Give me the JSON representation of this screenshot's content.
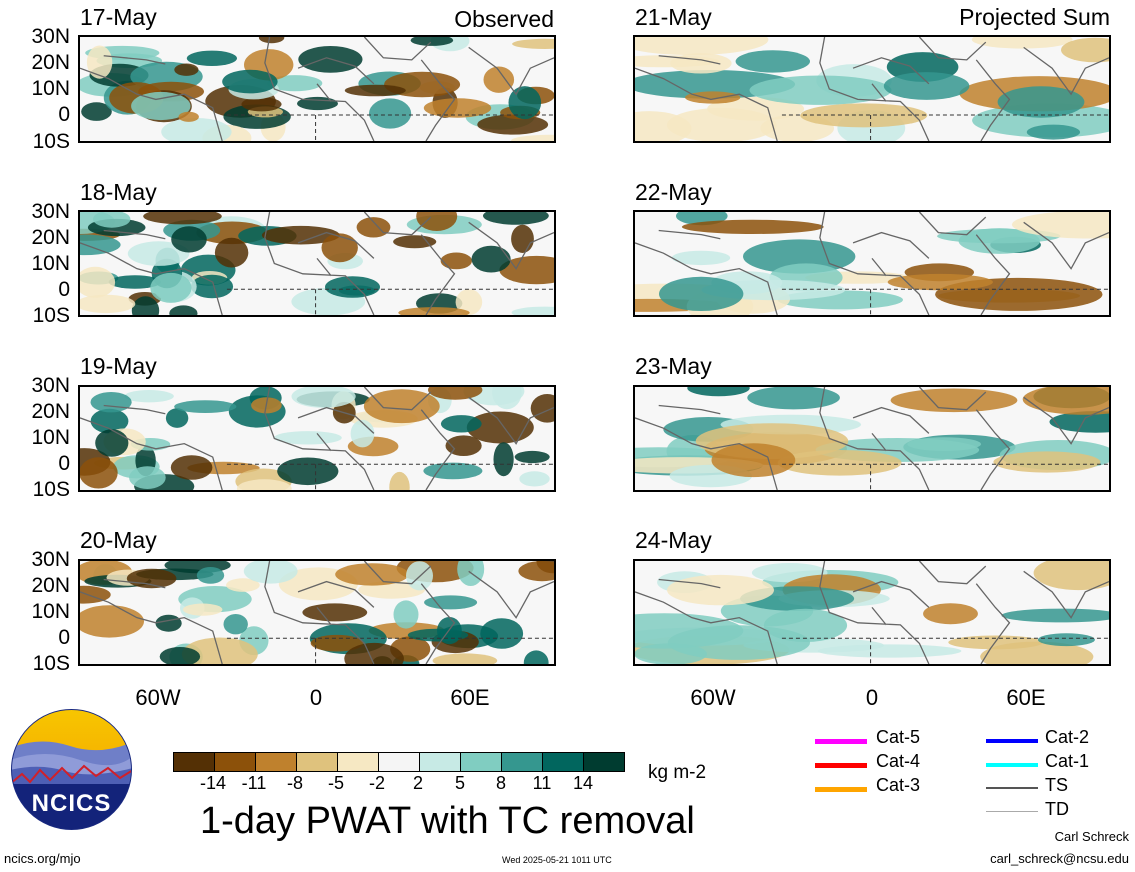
{
  "panels": [
    {
      "date": "17-May",
      "tag": "Observed",
      "kind": "obs",
      "seed": 11
    },
    {
      "date": "21-May",
      "tag": "Projected Sum",
      "kind": "proj",
      "seed": 21
    },
    {
      "date": "18-May",
      "tag": "",
      "kind": "obs",
      "seed": 12
    },
    {
      "date": "22-May",
      "tag": "",
      "kind": "proj",
      "seed": 22
    },
    {
      "date": "19-May",
      "tag": "",
      "kind": "obs",
      "seed": 13
    },
    {
      "date": "23-May",
      "tag": "",
      "kind": "proj",
      "seed": 23
    },
    {
      "date": "20-May",
      "tag": "",
      "kind": "obs",
      "seed": 14
    },
    {
      "date": "24-May",
      "tag": "",
      "kind": "proj",
      "seed": 24
    }
  ],
  "lat_labels": [
    "30N",
    "20N",
    "10N",
    "0",
    "10S"
  ],
  "lon_labels": [
    "60W",
    "0",
    "60E"
  ],
  "colorbar": {
    "colors": [
      "#543005",
      "#8c510a",
      "#bf812d",
      "#dfc27d",
      "#f6e8c3",
      "#f5f5f5",
      "#c7eae5",
      "#80cdc1",
      "#35978f",
      "#01665e",
      "#003c30"
    ],
    "labels": [
      "-14",
      "-11",
      "-8",
      "-5",
      "-2",
      "2",
      "5",
      "8",
      "11",
      "14"
    ],
    "units": "kg m-2"
  },
  "title": "1-day PWAT with TC removal",
  "logo_text": "NCICS",
  "legend": [
    {
      "label": "Cat-5",
      "color": "#ff00ff"
    },
    {
      "label": "Cat-4",
      "color": "#ff0000"
    },
    {
      "label": "Cat-3",
      "color": "#ffa500"
    },
    {
      "label": "Cat-2",
      "color": "#0000ff"
    },
    {
      "label": "Cat-1",
      "color": "#00ffff"
    },
    {
      "label": "TS",
      "color": "#555555"
    },
    {
      "label": "TD",
      "color": "#aaaaaa"
    }
  ],
  "footer": {
    "website": "ncics.org/mjo",
    "timestamp": "Wed 2025-05-21 1011 UTC",
    "author": "Carl Schreck",
    "email": "carl_schreck@ncsu.edu"
  }
}
